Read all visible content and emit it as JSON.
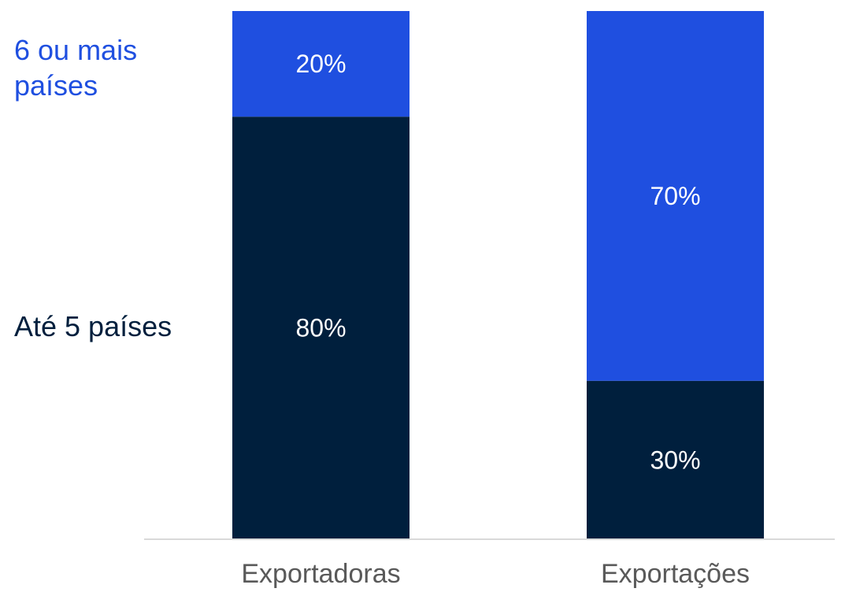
{
  "chart_data": {
    "type": "bar",
    "stacked": true,
    "normalized_percent": true,
    "categories": [
      "Exportadoras",
      "Exportações"
    ],
    "series": [
      {
        "name": "Até 5 países",
        "values": [
          80,
          30
        ],
        "labels": [
          "80%",
          "30%"
        ],
        "color": "#001f3d"
      },
      {
        "name": "6 ou mais países",
        "legend_lines": [
          "6 ou mais",
          "países"
        ],
        "values": [
          20,
          70
        ],
        "labels": [
          "20%",
          "70%"
        ],
        "color": "#1f4fe0"
      }
    ],
    "ylim": [
      0,
      100
    ],
    "grid": false,
    "legend": "left",
    "axis_color": "#d9d9d9",
    "category_label_color": "#595959"
  }
}
